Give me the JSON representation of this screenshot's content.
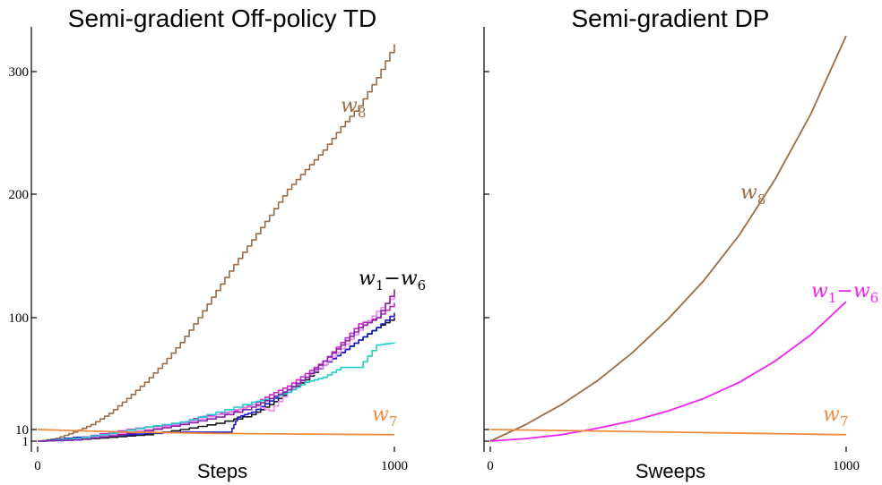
{
  "chart_data": [
    {
      "type": "line",
      "title": "Semi-gradient Off-policy TD",
      "xlabel": "Steps",
      "ylabel": "",
      "xlim": [
        0,
        1000
      ],
      "ylim": [
        -7,
        330
      ],
      "xticks": [
        0,
        1000
      ],
      "xtick_labels": [
        "0",
        "1000"
      ],
      "yticks": [
        1,
        10,
        100,
        200,
        300
      ],
      "ytick_labels": [
        "1",
        "10",
        "100",
        "200",
        "300"
      ],
      "grid": false,
      "legend": "none",
      "series": [
        {
          "name": "w8",
          "color": "#9b6b45",
          "step": true,
          "x": [
            0,
            50,
            100,
            150,
            200,
            250,
            300,
            350,
            400,
            450,
            500,
            550,
            600,
            650,
            700,
            750,
            800,
            850,
            900,
            950,
            1000
          ],
          "y": [
            1,
            3,
            8,
            14,
            23,
            35,
            48,
            63,
            80,
            100,
            122,
            143,
            163,
            183,
            204,
            220,
            236,
            255,
            272,
            295,
            323
          ]
        },
        {
          "name": "w1-w6 (1)",
          "color": "#1a1a1a",
          "step": true,
          "x": [
            0,
            100,
            200,
            300,
            400,
            500,
            600,
            650,
            700,
            750,
            800,
            850,
            900,
            950,
            1000
          ],
          "y": [
            1,
            2,
            4,
            6,
            10,
            15,
            22,
            30,
            40,
            50,
            62,
            72,
            82,
            92,
            100
          ]
        },
        {
          "name": "w1-w6 (2)",
          "color": "#1a1acc",
          "step": true,
          "x": [
            0,
            100,
            200,
            300,
            400,
            500,
            540,
            560,
            600,
            650,
            700,
            750,
            800,
            850,
            900,
            950,
            1000
          ],
          "y": [
            1,
            4,
            5,
            7,
            8,
            8,
            8,
            20,
            24,
            33,
            42,
            52,
            62,
            72,
            82,
            92,
            104
          ]
        },
        {
          "name": "w1-w6 (3)",
          "color": "#cc22cc",
          "step": true,
          "x": [
            0,
            100,
            200,
            300,
            400,
            450,
            500,
            550,
            600,
            650,
            700,
            750,
            800,
            850,
            900,
            950,
            1000
          ],
          "y": [
            1,
            3,
            8,
            12,
            15,
            20,
            22,
            25,
            30,
            38,
            45,
            55,
            65,
            80,
            95,
            100,
            112
          ]
        },
        {
          "name": "w1-w6 (4)",
          "color": "#ee88ee",
          "step": true,
          "x": [
            0,
            100,
            200,
            300,
            400,
            500,
            600,
            650,
            700,
            750,
            800,
            850,
            900,
            950,
            1000
          ],
          "y": [
            1,
            3,
            6,
            10,
            15,
            22,
            30,
            25,
            40,
            52,
            62,
            75,
            90,
            105,
            118
          ]
        },
        {
          "name": "w1-w6 (5)",
          "color": "#22cccc",
          "step": true,
          "x": [
            0,
            100,
            200,
            300,
            400,
            500,
            600,
            650,
            700,
            750,
            800,
            850,
            900,
            950,
            1000
          ],
          "y": [
            1,
            3,
            7,
            12,
            16,
            24,
            32,
            35,
            40,
            48,
            52,
            60,
            60,
            78,
            80
          ]
        },
        {
          "name": "w1-w6 (6)",
          "color": "#8822aa",
          "step": true,
          "x": [
            0,
            100,
            200,
            300,
            400,
            500,
            600,
            650,
            700,
            750,
            800,
            850,
            900,
            950,
            1000
          ],
          "y": [
            1,
            2,
            5,
            9,
            14,
            20,
            28,
            35,
            42,
            52,
            65,
            78,
            92,
            100,
            123
          ]
        },
        {
          "name": "w7",
          "color": "#f08a3c",
          "step": false,
          "x": [
            0,
            250,
            500,
            750,
            1000
          ],
          "y": [
            10,
            8,
            7,
            6.5,
            6
          ]
        }
      ],
      "annotations": [
        {
          "series": "w8",
          "base": "w",
          "sub": "8",
          "color": "#9b6b45"
        },
        {
          "series": "w1-w6",
          "base": "w",
          "sub": "1",
          "dash": "−",
          "base2": "w",
          "sub2": "6",
          "color": "#000000"
        },
        {
          "series": "w7",
          "base": "w",
          "sub": "7",
          "color": "#f08a3c"
        }
      ]
    },
    {
      "type": "line",
      "title": "Semi-gradient DP",
      "xlabel": "Sweeps",
      "ylabel": "",
      "xlim": [
        0,
        1000
      ],
      "ylim": [
        -7,
        330
      ],
      "xticks": [
        0,
        1000
      ],
      "xtick_labels": [
        "0",
        "1000"
      ],
      "yticks": [
        1,
        10,
        100,
        200,
        300
      ],
      "ytick_labels": [],
      "grid": false,
      "legend": "none",
      "series": [
        {
          "name": "w8",
          "color": "#9b6b45",
          "step": false,
          "x": [
            0,
            100,
            200,
            300,
            400,
            500,
            600,
            700,
            800,
            900,
            1000
          ],
          "y": [
            1,
            14,
            30,
            49,
            72,
            99,
            130,
            167,
            212,
            265,
            330
          ]
        },
        {
          "name": "w1-w6",
          "color": "#ee22ee",
          "step": false,
          "x": [
            0,
            100,
            200,
            300,
            400,
            500,
            600,
            700,
            800,
            900,
            1000
          ],
          "y": [
            1,
            3,
            6,
            11,
            17,
            25,
            35,
            48,
            65,
            86,
            113
          ]
        },
        {
          "name": "w7",
          "color": "#f08a3c",
          "step": false,
          "x": [
            0,
            250,
            500,
            750,
            1000
          ],
          "y": [
            10,
            9,
            8,
            7,
            6
          ]
        }
      ],
      "annotations": [
        {
          "series": "w8",
          "base": "w",
          "sub": "8",
          "color": "#9b6b45"
        },
        {
          "series": "w1-w6",
          "base": "w",
          "sub": "1",
          "dash": "−",
          "base2": "w",
          "sub2": "6",
          "color": "#ee22ee"
        },
        {
          "series": "w7",
          "base": "w",
          "sub": "7",
          "color": "#f08a3c"
        }
      ]
    }
  ]
}
